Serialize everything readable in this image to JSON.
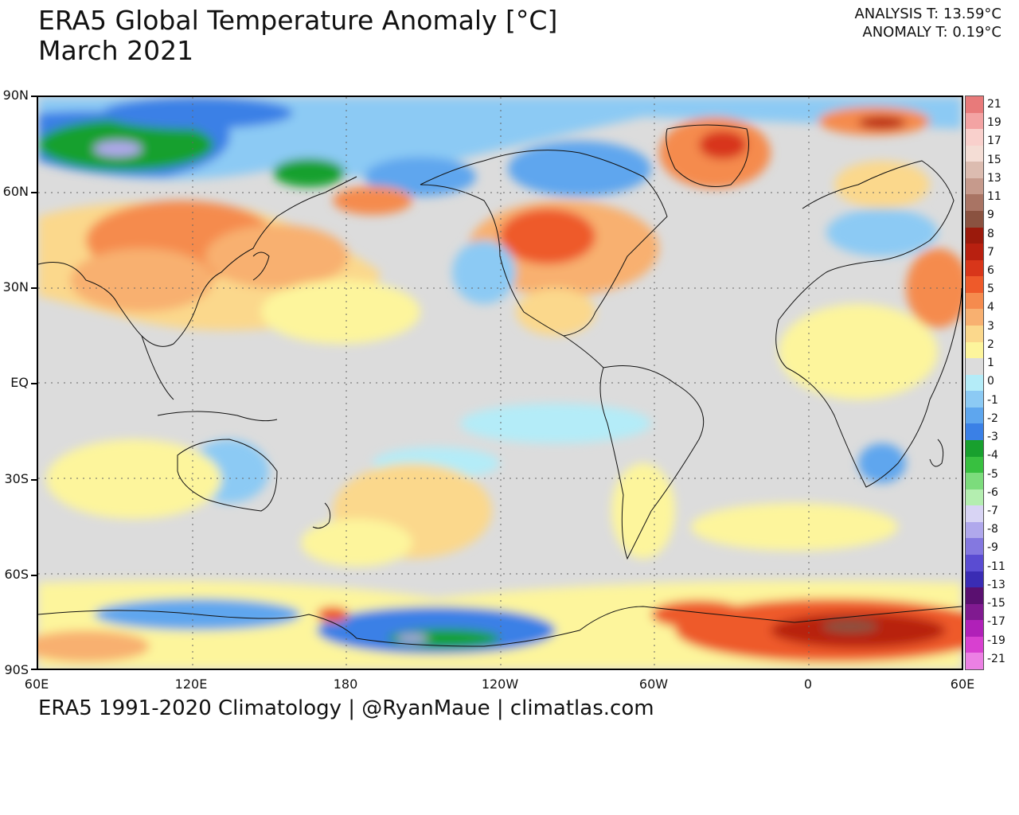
{
  "header": {
    "title": "ERA5 Global Temperature Anomaly [°C]",
    "subtitle": "March 2021",
    "analysis": "ANALYSIS T: 13.59°C",
    "anomaly": "ANOMALY T: 0.19°C"
  },
  "footer": {
    "credit": "ERA5 1991-2020 Climatology | @RyanMaue | climatlas.com"
  },
  "axes": {
    "lat_labels": [
      "90N",
      "60N",
      "30N",
      "EQ",
      "30S",
      "60S",
      "90S"
    ],
    "lon_labels": [
      "60E",
      "120E",
      "180",
      "120W",
      "60W",
      "0",
      "60E"
    ]
  },
  "colorbar": {
    "labels": [
      "21",
      "19",
      "17",
      "15",
      "13",
      "11",
      "9",
      "8",
      "7",
      "6",
      "5",
      "4",
      "3",
      "2",
      "1",
      "0",
      "-1",
      "-2",
      "-3",
      "-4",
      "-5",
      "-6",
      "-7",
      "-8",
      "-9",
      "-11",
      "-13",
      "-15",
      "-17",
      "-19",
      "-21"
    ],
    "colors": [
      "#e87a7a",
      "#f3a3a3",
      "#f9d0cc",
      "#f4ddd5",
      "#dcbcb0",
      "#c69a8c",
      "#a97464",
      "#8a5240",
      "#9b1a0c",
      "#b82010",
      "#d8361a",
      "#ee5a2a",
      "#f58b4e",
      "#f8b070",
      "#fbd88c",
      "#fdf59c",
      "#dcdcdc",
      "#b4ecf8",
      "#8ccaf4",
      "#5ea6ee",
      "#3a80e6",
      "#18a02e",
      "#38c040",
      "#7cdc7c",
      "#b4eeb0",
      "#d8d4f4",
      "#b0a8ec",
      "#8478e0",
      "#5a4cd2",
      "#3a2cb4",
      "#5a1070",
      "#801a90",
      "#b020b8",
      "#d840d0",
      "#ec80e4"
    ]
  },
  "map": {
    "ocean_color": "#dcdcdc",
    "grid": "dotted"
  }
}
